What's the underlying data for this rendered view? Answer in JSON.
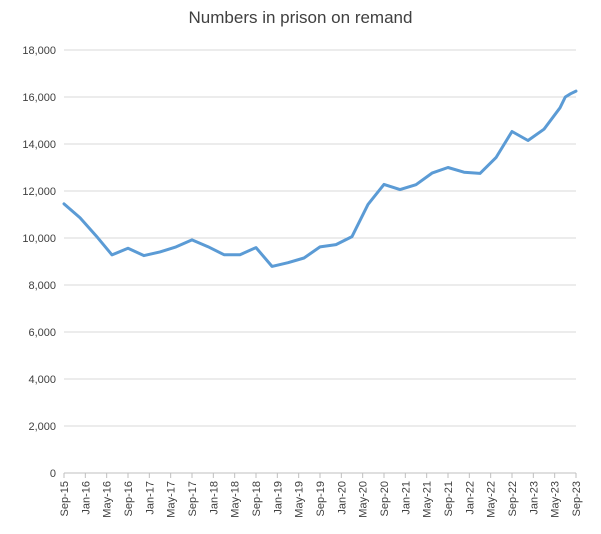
{
  "chart_data": {
    "type": "line",
    "title": "Numbers in prison on remand",
    "xlabel": "",
    "ylabel": "",
    "ylim": [
      0,
      18000
    ],
    "yticks": [
      0,
      2000,
      4000,
      6000,
      8000,
      10000,
      12000,
      14000,
      16000,
      18000
    ],
    "ytick_labels": [
      "0",
      "2,000",
      "4,000",
      "6,000",
      "8,000",
      "10,000",
      "12,000",
      "14,000",
      "16,000",
      "18,000"
    ],
    "grid": true,
    "legend": "none",
    "line_color": "#5b9bd5",
    "x_tick_labels": [
      "Sep-15",
      "Jan-16",
      "May-16",
      "Sep-16",
      "Jan-17",
      "May-17",
      "Sep-17",
      "Jan-18",
      "May-18",
      "Sep-18",
      "Jan-19",
      "May-19",
      "Sep-19",
      "Jan-20",
      "May-20",
      "Sep-20",
      "Jan-21",
      "May-21",
      "Sep-21",
      "Jan-22",
      "May-22",
      "Sep-22",
      "Jan-23",
      "May-23",
      "Sep-23"
    ],
    "x": [
      "Sep-15",
      "Dec-15",
      "Mar-16",
      "Jun-16",
      "Sep-16",
      "Dec-16",
      "Mar-17",
      "Jun-17",
      "Sep-17",
      "Dec-17",
      "Mar-18",
      "Jun-18",
      "Sep-18",
      "Dec-18",
      "Mar-19",
      "Jun-19",
      "Sep-19",
      "Dec-19",
      "Mar-20",
      "Jun-20",
      "Sep-20",
      "Dec-20",
      "Mar-21",
      "Jun-21",
      "Sep-21",
      "Dec-21",
      "Mar-22",
      "Jun-22",
      "Sep-22",
      "Dec-22",
      "Mar-23",
      "Jun-23",
      "Jul-23",
      "Aug-23",
      "Sep-23"
    ],
    "series": [
      {
        "values": [
          11450,
          10860,
          10100,
          9280,
          9560,
          9250,
          9410,
          9620,
          9920,
          9630,
          9290,
          9290,
          9590,
          8790,
          8950,
          9150,
          9620,
          9720,
          10060,
          11430,
          12280,
          12060,
          12270,
          12760,
          13000,
          12800,
          12750,
          13420,
          14530,
          14150,
          14630,
          15540,
          16000,
          16140,
          16250
        ]
      }
    ]
  }
}
